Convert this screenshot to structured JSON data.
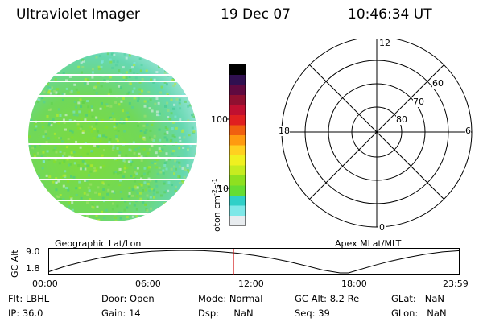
{
  "header": {
    "instrument": "Ultraviolet Imager",
    "date": "19 Dec 07",
    "time": "10:46:34 UT"
  },
  "image_panel": {
    "caption": "Geographic Lat/Lon"
  },
  "colorbar": {
    "label_units": "photon cm",
    "label_exp1": "-2",
    "label_s": "s",
    "label_exp2": "-1",
    "tick_100": "100",
    "tick_10": "10",
    "colors": [
      "#e8ecef",
      "#7fe8e8",
      "#30d0c8",
      "#66dd33",
      "#8ee020",
      "#c6ec20",
      "#f0f020",
      "#ffd020",
      "#ff9a10",
      "#f06010",
      "#e02020",
      "#c01030",
      "#901030",
      "#600a40",
      "#301050",
      "#000000"
    ]
  },
  "polar_plot": {
    "caption": "Apex MLat/MLT",
    "mlt_labels": {
      "top": "12",
      "bottom": "0",
      "left": "18",
      "right": "6"
    },
    "lat_labels": [
      "60",
      "70",
      "80"
    ]
  },
  "chart_data": {
    "type": "line",
    "title": "",
    "ylabel": "GC Alt",
    "yticks": [
      "9.0",
      "1.8"
    ],
    "ylim": [
      1.8,
      9.0
    ],
    "xticks": [
      "00:00",
      "06:00",
      "12:00",
      "18:00",
      "23:59"
    ],
    "xlim_hours": [
      0,
      24
    ],
    "series": [
      {
        "x_hours": [
          0,
          1,
          2,
          3,
          4,
          5,
          6,
          7,
          8,
          9,
          10,
          11,
          12,
          13,
          14,
          15,
          16,
          17,
          17.5,
          18,
          19,
          20,
          21,
          22,
          23,
          24
        ],
        "values": [
          2.2,
          4.0,
          5.4,
          6.6,
          7.5,
          8.2,
          8.7,
          8.9,
          9.0,
          8.9,
          8.6,
          8.1,
          7.4,
          6.5,
          5.4,
          4.1,
          2.7,
          1.8,
          1.8,
          2.6,
          4.2,
          5.6,
          6.8,
          7.8,
          8.5,
          8.9
        ]
      }
    ],
    "current_time_hours": 10.78,
    "current_line_color": "#cc0000"
  },
  "footer": {
    "row1": [
      {
        "label": "Flt:",
        "value": "LBHL"
      },
      {
        "label": "Door:",
        "value": "Open"
      },
      {
        "label": "Mode:",
        "value": "Normal"
      },
      {
        "label": "GC Alt:",
        "value": "8.2 Re"
      },
      {
        "label": "GLat:",
        "value": "NaN"
      }
    ],
    "row2": [
      {
        "label": "IP:",
        "value": "36.0"
      },
      {
        "label": "Gain:",
        "value": "14"
      },
      {
        "label": "Dsp:",
        "value": "NaN"
      },
      {
        "label": "Seq:",
        "value": "39"
      },
      {
        "label": "GLon:",
        "value": "NaN"
      }
    ]
  }
}
